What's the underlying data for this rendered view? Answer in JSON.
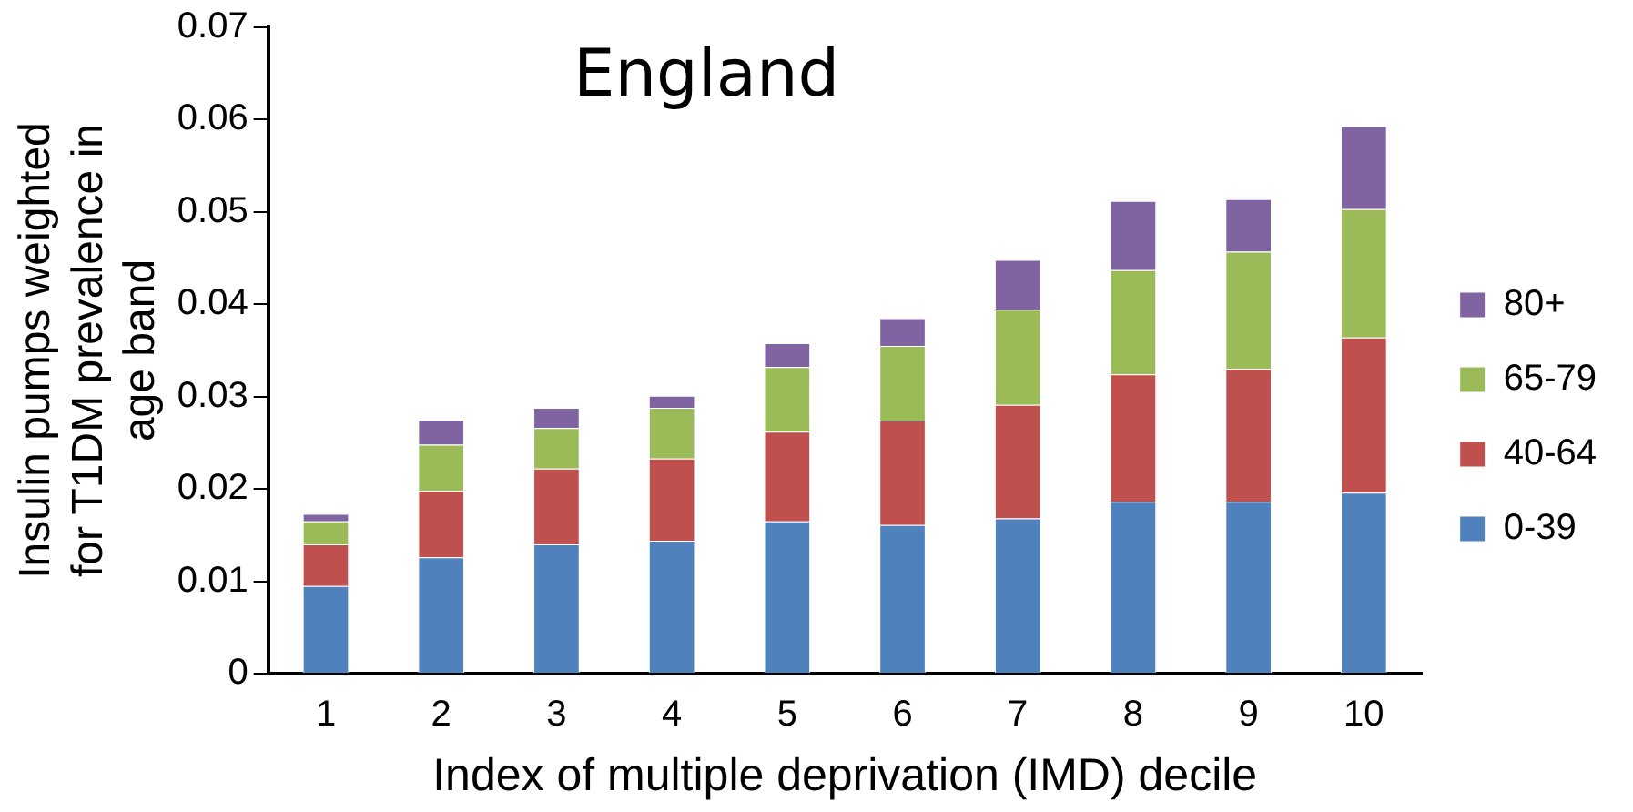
{
  "chart_data": {
    "type": "bar",
    "title": "England",
    "xlabel": "Index of multiple deprivation (IMD) decile",
    "ylabel": "Insulin pumps weighted for T1DM prevalence in age band",
    "categories": [
      "1",
      "2",
      "3",
      "4",
      "5",
      "6",
      "7",
      "8",
      "9",
      "10"
    ],
    "stacked": true,
    "series": [
      {
        "name": "0-39",
        "color": "#4f81bd",
        "values": [
          0.0095,
          0.0126,
          0.014,
          0.0144,
          0.0165,
          0.0161,
          0.0168,
          0.0186,
          0.0186,
          0.0196
        ]
      },
      {
        "name": "40-64",
        "color": "#c0504d",
        "values": [
          0.0045,
          0.0072,
          0.0082,
          0.0089,
          0.0097,
          0.0113,
          0.0123,
          0.0138,
          0.0144,
          0.0168
        ]
      },
      {
        "name": "65-79",
        "color": "#9bbb59",
        "values": [
          0.0025,
          0.005,
          0.0044,
          0.0055,
          0.007,
          0.0081,
          0.0103,
          0.0113,
          0.0127,
          0.0139
        ]
      },
      {
        "name": "80+",
        "color": "#8064a2",
        "values": [
          0.0008,
          0.0027,
          0.0022,
          0.0013,
          0.0026,
          0.003,
          0.0054,
          0.0075,
          0.0057,
          0.009
        ]
      }
    ],
    "ylim": [
      0,
      0.07
    ],
    "yticks": [
      0,
      0.01,
      0.02,
      0.03,
      0.04,
      0.05,
      0.06,
      0.07
    ],
    "grid": false,
    "legend": "right"
  }
}
